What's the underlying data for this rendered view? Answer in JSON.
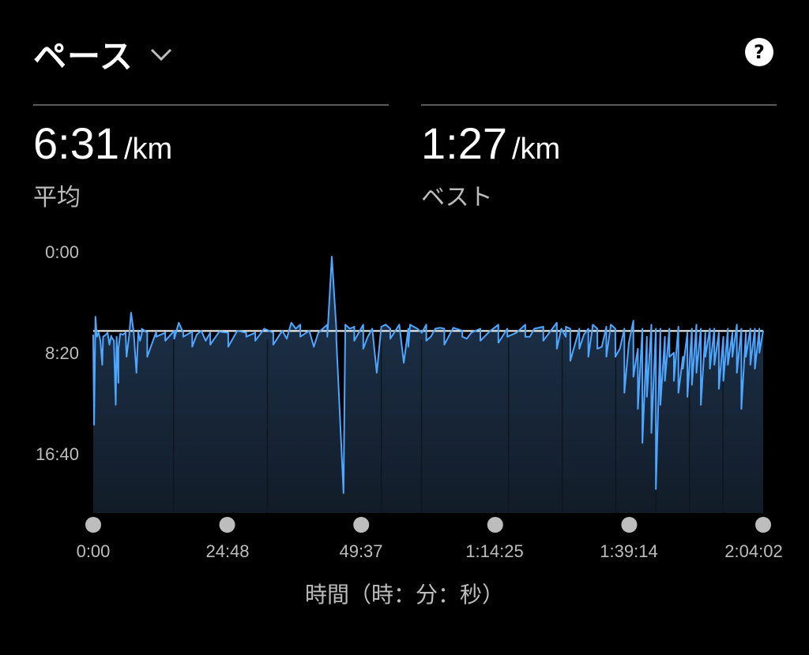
{
  "header": {
    "title": "ペース",
    "help_symbol": "?"
  },
  "stats": [
    {
      "value": "6:31",
      "unit": "/km",
      "label": "平均"
    },
    {
      "value": "1:27",
      "unit": "/km",
      "label": "ベスト"
    }
  ],
  "colors": {
    "line": "#4da6ff",
    "average_line": "#ffffff",
    "fill_top": "#1f3550",
    "fill_bottom": "#121c28",
    "background": "#000000",
    "marker": "#bdbdbd"
  },
  "chart_data": {
    "type": "line",
    "title": "ペース",
    "xlabel": "時間（時：分：秒）",
    "ylabel": "",
    "y_inverted": true,
    "x_unit": "seconds",
    "y_unit": "seconds per km",
    "ylim": [
      0,
      1200
    ],
    "xlim": [
      0,
      7442
    ],
    "y_ticks": [
      {
        "value": 0,
        "label": "0:00"
      },
      {
        "value": 500,
        "label": "8:20"
      },
      {
        "value": 1000,
        "label": "16:40"
      }
    ],
    "x_ticks": [
      {
        "value": 0,
        "label": "0:00"
      },
      {
        "value": 1488,
        "label": "24:48"
      },
      {
        "value": 2977,
        "label": "49:37"
      },
      {
        "value": 4465,
        "label": "1:14:25"
      },
      {
        "value": 5954,
        "label": "1:39:14"
      },
      {
        "value": 7442,
        "label": "2:04:02"
      }
    ],
    "average": 391,
    "series": [
      {
        "points": [
          [
            0,
            410
          ],
          [
            10,
            860
          ],
          [
            25,
            320
          ],
          [
            40,
            420
          ],
          [
            60,
            400
          ],
          [
            80,
            440
          ],
          [
            100,
            560
          ],
          [
            110,
            420
          ],
          [
            140,
            410
          ],
          [
            160,
            400
          ],
          [
            180,
            460
          ],
          [
            200,
            415
          ],
          [
            230,
            440
          ],
          [
            260,
            420
          ],
          [
            280,
            650
          ],
          [
            300,
            405
          ],
          [
            330,
            410
          ],
          [
            360,
            400
          ],
          [
            400,
            410
          ],
          [
            450,
            400
          ],
          [
            500,
            395
          ],
          [
            520,
            440
          ],
          [
            540,
            405
          ],
          [
            600,
            400
          ],
          [
            700,
            395
          ],
          [
            800,
            400
          ],
          [
            900,
            390
          ],
          [
            950,
            350
          ],
          [
            1000,
            400
          ],
          [
            1100,
            395
          ],
          [
            1150,
            410
          ],
          [
            1200,
            390
          ],
          [
            1250,
            440
          ],
          [
            1300,
            400
          ],
          [
            1400,
            395
          ],
          [
            1500,
            400
          ],
          [
            1600,
            390
          ],
          [
            1700,
            400
          ],
          [
            1800,
            400
          ],
          [
            1900,
            380
          ],
          [
            2000,
            400
          ],
          [
            2100,
            390
          ],
          [
            2200,
            350
          ],
          [
            2250,
            380
          ],
          [
            2300,
            360
          ],
          [
            2400,
            390
          ],
          [
            2500,
            400
          ],
          [
            2600,
            360
          ],
          [
            2700,
            380
          ],
          [
            2800,
            360
          ],
          [
            2850,
            380
          ],
          [
            2900,
            370
          ],
          [
            3000,
            360
          ],
          [
            3050,
            420
          ],
          [
            3100,
            380
          ],
          [
            3150,
            600
          ],
          [
            3200,
            370
          ],
          [
            3250,
            360
          ],
          [
            3300,
            380
          ],
          [
            3400,
            360
          ],
          [
            3450,
            550
          ],
          [
            3500,
            380
          ],
          [
            3520,
            360
          ],
          [
            3600,
            380
          ],
          [
            3650,
            400
          ],
          [
            3700,
            360
          ],
          [
            3750,
            420
          ],
          [
            3800,
            380
          ],
          [
            3850,
            375
          ],
          [
            3900,
            380
          ],
          [
            4000,
            375
          ],
          [
            4100,
            390
          ],
          [
            4150,
            430
          ],
          [
            4200,
            400
          ],
          [
            4300,
            380
          ],
          [
            4400,
            395
          ],
          [
            4500,
            360
          ],
          [
            4600,
            380
          ],
          [
            4700,
            400
          ],
          [
            4750,
            380
          ],
          [
            4800,
            360
          ],
          [
            4850,
            420
          ],
          [
            4900,
            380
          ],
          [
            5000,
            370
          ],
          [
            5100,
            380
          ],
          [
            5150,
            350
          ],
          [
            5200,
            380
          ],
          [
            5250,
            420
          ],
          [
            5300,
            380
          ],
          [
            5400,
            380
          ],
          [
            5450,
            410
          ],
          [
            5500,
            380
          ],
          [
            5550,
            360
          ],
          [
            5600,
            380
          ],
          [
            5700,
            370
          ],
          [
            5750,
            360
          ],
          [
            5800,
            380
          ],
          [
            5850,
            480
          ],
          [
            5900,
            380
          ],
          [
            5950,
            450
          ],
          [
            6000,
            340
          ],
          [
            6050,
            480
          ],
          [
            6100,
            380
          ],
          [
            6150,
            420
          ],
          [
            6200,
            360
          ],
          [
            6250,
            380
          ],
          [
            6300,
            380
          ],
          [
            6350,
            420
          ],
          [
            6400,
            380
          ],
          [
            6450,
            500
          ],
          [
            6500,
            370
          ],
          [
            6550,
            520
          ],
          [
            6600,
            400
          ],
          [
            6650,
            380
          ],
          [
            6700,
            360
          ],
          [
            6750,
            380
          ],
          [
            6800,
            400
          ],
          [
            6850,
            380
          ],
          [
            6900,
            380
          ],
          [
            6950,
            400
          ],
          [
            7000,
            420
          ],
          [
            7050,
            380
          ],
          [
            7100,
            400
          ],
          [
            7150,
            360
          ],
          [
            7200,
            380
          ],
          [
            7250,
            400
          ],
          [
            7300,
            380
          ],
          [
            7350,
            380
          ],
          [
            7400,
            380
          ],
          [
            7442,
            390
          ]
        ],
        "spikes": [
          [
            200,
            420
          ],
          [
            250,
            760
          ],
          [
            280,
            480
          ],
          [
            370,
            520
          ],
          [
            420,
            300
          ],
          [
            480,
            600
          ],
          [
            540,
            380
          ],
          [
            600,
            520
          ],
          [
            640,
            470
          ],
          [
            700,
            420
          ],
          [
            800,
            440
          ],
          [
            900,
            430
          ],
          [
            1000,
            420
          ],
          [
            1100,
            470
          ],
          [
            1300,
            460
          ],
          [
            1500,
            470
          ],
          [
            1700,
            420
          ],
          [
            1800,
            440
          ],
          [
            2000,
            460
          ],
          [
            2150,
            430
          ],
          [
            2300,
            420
          ],
          [
            2450,
            470
          ],
          [
            2600,
            420
          ],
          [
            2700,
            430
          ],
          [
            2780,
            1200
          ],
          [
            2900,
            440
          ],
          [
            3000,
            480
          ],
          [
            3300,
            430
          ],
          [
            3500,
            470
          ],
          [
            3700,
            440
          ],
          [
            3900,
            460
          ],
          [
            4100,
            420
          ],
          [
            4300,
            440
          ],
          [
            4500,
            450
          ],
          [
            4600,
            420
          ],
          [
            4800,
            420
          ],
          [
            5000,
            440
          ],
          [
            5150,
            480
          ],
          [
            5250,
            370
          ],
          [
            5300,
            540
          ],
          [
            5400,
            480
          ],
          [
            5500,
            520
          ],
          [
            5600,
            480
          ],
          [
            5650,
            470
          ],
          [
            5700,
            520
          ],
          [
            5800,
            520
          ],
          [
            5900,
            700
          ],
          [
            6000,
            620
          ],
          [
            6050,
            780
          ],
          [
            6100,
            950
          ],
          [
            6150,
            720
          ],
          [
            6200,
            900
          ],
          [
            6250,
            1180
          ],
          [
            6300,
            760
          ],
          [
            6350,
            640
          ],
          [
            6400,
            520
          ],
          [
            6450,
            640
          ],
          [
            6500,
            700
          ],
          [
            6550,
            580
          ],
          [
            6600,
            720
          ],
          [
            6650,
            660
          ],
          [
            6700,
            600
          ],
          [
            6750,
            760
          ],
          [
            6800,
            520
          ],
          [
            6850,
            580
          ],
          [
            6900,
            560
          ],
          [
            6950,
            680
          ],
          [
            7000,
            640
          ],
          [
            7050,
            560
          ],
          [
            7100,
            520
          ],
          [
            7150,
            600
          ],
          [
            7200,
            780
          ],
          [
            7250,
            520
          ],
          [
            7300,
            560
          ],
          [
            7350,
            580
          ],
          [
            7400,
            500
          ]
        ],
        "up_spike": [
          2650,
          20
        ]
      }
    ],
    "grid": false,
    "legend": "none"
  }
}
